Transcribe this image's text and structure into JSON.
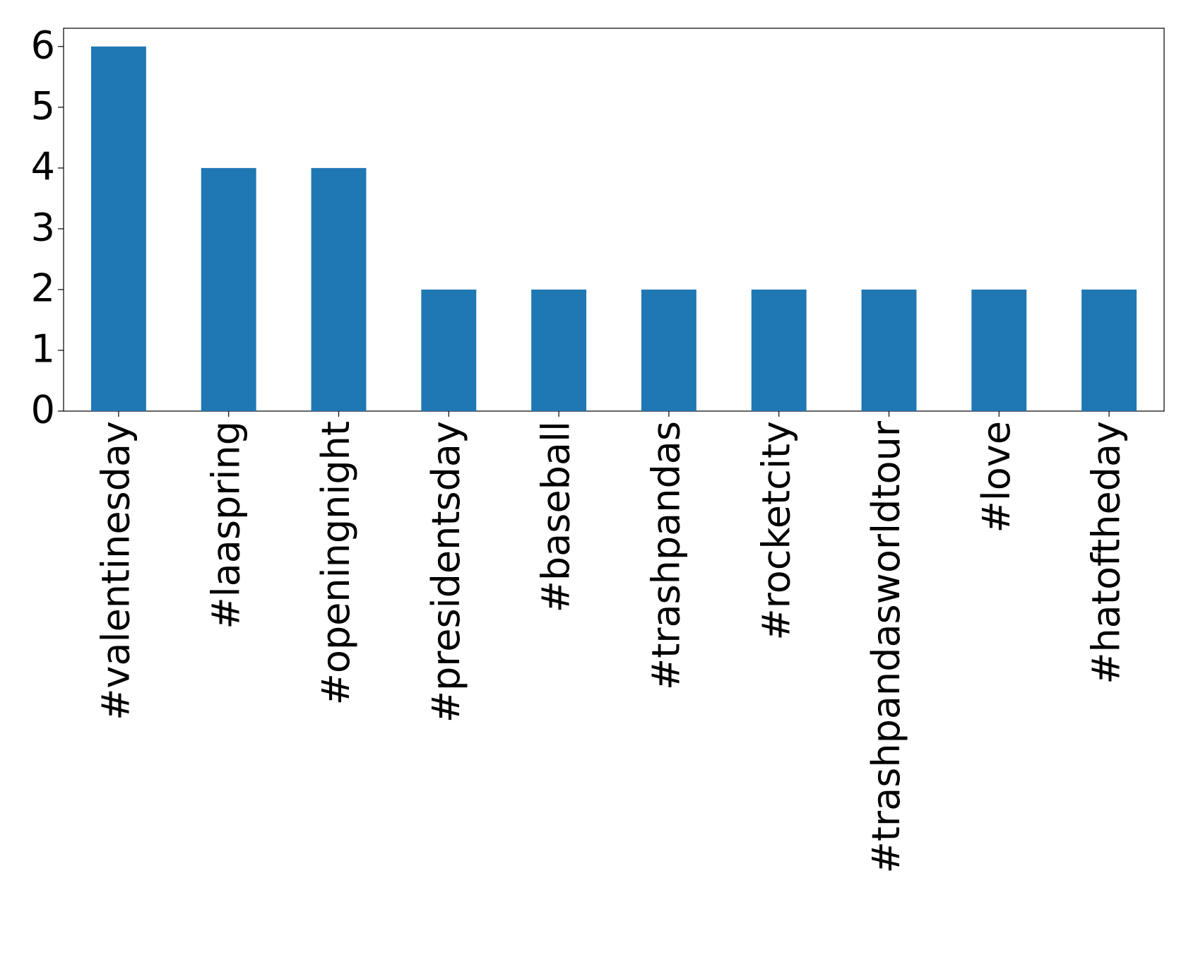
{
  "chart_data": {
    "type": "bar",
    "categories": [
      "#valentinesday",
      "#laaspring",
      "#openingnight",
      "#presidentsday",
      "#baseball",
      "#trashpandas",
      "#rocketcity",
      "#trashpandasworldtour",
      "#love",
      "#hatoftheday"
    ],
    "values": [
      6,
      4,
      4,
      2,
      2,
      2,
      2,
      2,
      2,
      2
    ],
    "color": "#1f77b4",
    "ylim": [
      0,
      6.3
    ],
    "yticks": [
      0,
      1,
      2,
      3,
      4,
      5,
      6
    ],
    "grid": false
  }
}
